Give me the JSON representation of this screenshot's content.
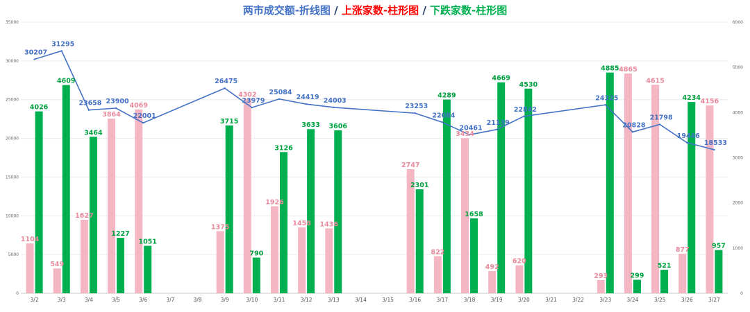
{
  "title": {
    "part1": "两市成交额-折线图",
    "sep1": " / ",
    "part2": "上涨家数-柱形图",
    "sep2": " / ",
    "part3": "下跌家数-柱形图",
    "color1": "#4472C4",
    "color2": "#FF0000",
    "color3": "#00B050",
    "sepColor": "#1F3864"
  },
  "chart_data": {
    "type": "bar",
    "categories": [
      "3/2",
      "3/3",
      "3/4",
      "3/5",
      "3/6",
      "3/7",
      "3/8",
      "3/9",
      "3/10",
      "3/11",
      "3/12",
      "3/13",
      "3/14",
      "3/15",
      "3/16",
      "3/17",
      "3/18",
      "3/19",
      "3/20",
      "3/21",
      "3/22",
      "3/23",
      "3/24",
      "3/25",
      "3/26",
      "3/27"
    ],
    "left_axis": {
      "ylim": [
        0,
        35000
      ],
      "ticks": [
        0,
        5000,
        10000,
        15000,
        20000,
        25000,
        30000,
        35000
      ]
    },
    "right_axis": {
      "ylim": [
        0,
        6000
      ],
      "ticks": [
        0,
        1000,
        2000,
        3000,
        4000,
        5000,
        6000
      ]
    },
    "series": [
      {
        "kind": "bar",
        "axis": "right",
        "color": "#F4B6C2",
        "labelColor": "#E88A9C",
        "values": [
          1104,
          549,
          1627,
          3864,
          4069,
          null,
          null,
          1375,
          4302,
          1926,
          1458,
          1436,
          null,
          null,
          2747,
          822,
          3434,
          492,
          620,
          null,
          null,
          293,
          4865,
          4615,
          877,
          4156
        ]
      },
      {
        "kind": "bar",
        "axis": "right",
        "color": "#00B050",
        "labelColor": "#00A040",
        "values": [
          4026,
          4609,
          3464,
          1227,
          1051,
          null,
          null,
          3715,
          790,
          3126,
          3633,
          3606,
          null,
          null,
          2301,
          4289,
          1658,
          4669,
          4530,
          null,
          null,
          4885,
          299,
          521,
          4234,
          957
        ]
      },
      {
        "kind": "line",
        "axis": "left",
        "color": "#4472C4",
        "labelColor": "#4472C4",
        "values": [
          30207,
          31295,
          23658,
          23900,
          22001,
          null,
          null,
          26475,
          23979,
          25084,
          24419,
          24003,
          null,
          null,
          23253,
          22084,
          20461,
          21139,
          22842,
          null,
          null,
          24325,
          20828,
          21798,
          19446,
          18533
        ]
      }
    ]
  }
}
